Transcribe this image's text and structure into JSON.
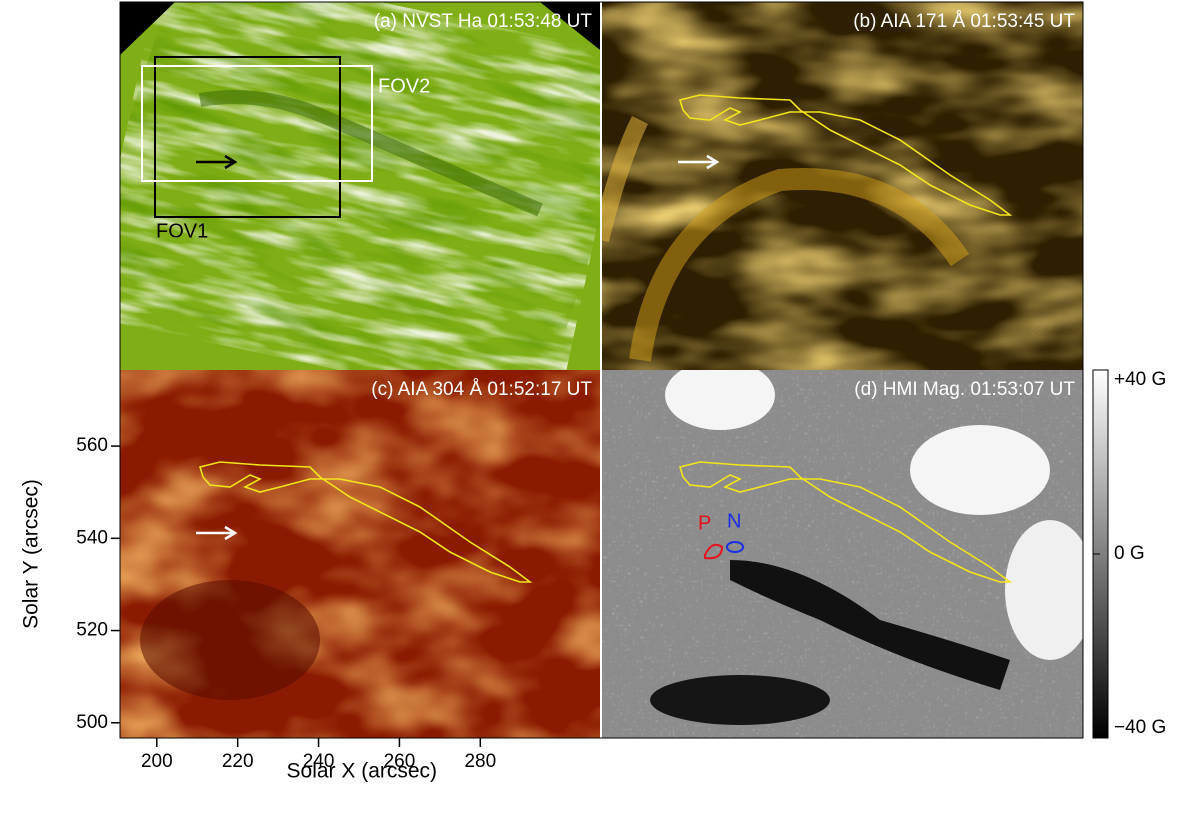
{
  "chart_data": [
    {
      "type": "image",
      "title": "(a) NVST Ha 01:53:48 UT",
      "annotations": [
        "FOV1",
        "FOV2"
      ]
    },
    {
      "type": "image",
      "title": "(b) AIA 171 Å 01:53:45 UT"
    },
    {
      "type": "image",
      "title": "(c) AIA 304 Å 01:52:17 UT",
      "x_label": "Solar X (arcsec)",
      "y_label": "Solar Y (arcsec)",
      "xlim": [
        190.9,
        309.6
      ],
      "ylim": [
        496.7,
        576.5
      ],
      "xticks": [
        200,
        220,
        240,
        260,
        280
      ],
      "yticks": [
        500,
        520,
        540,
        560
      ]
    },
    {
      "type": "image",
      "title": "(d) HMI Mag. 01:53:07 UT",
      "annotations": [
        "P",
        "N"
      ],
      "colorbar": {
        "ylim": [
          -40,
          40
        ],
        "yticks": [
          {
            "value": -40,
            "label": "−40 G"
          },
          {
            "value": 0,
            "label": "0 G"
          },
          {
            "value": 40,
            "label": "+40 G"
          }
        ]
      }
    }
  ]
}
